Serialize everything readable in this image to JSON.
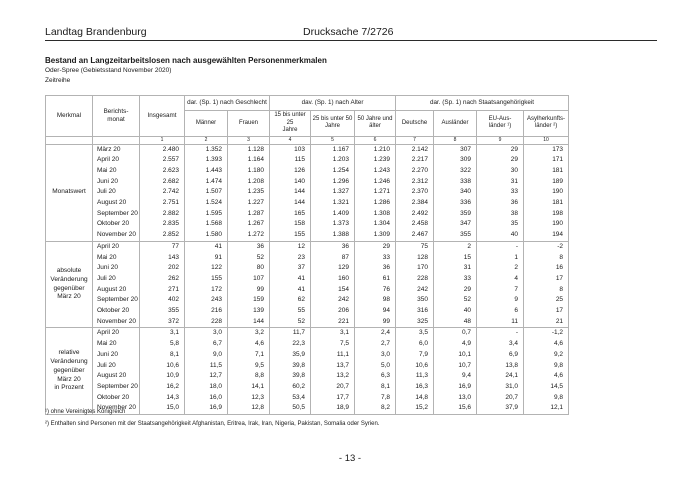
{
  "page": {
    "header_left": "Landtag Brandenburg",
    "header_right": "Drucksache 7/2726",
    "title": "Bestand an Langzeitarbeitslosen nach ausgewählten Personenmerkmalen",
    "subtitle": "Oder-Spree (Gebietsstand November 2020)",
    "subtitle2": "Zeitreihe",
    "footnote1": "¹) ohne Vereinigtes Königreich",
    "footnote2": "²) Enthalten sind Personen mit der Staatsangehörigkeit Afghanistan, Eritrea, Irak, Iran, Nigeria, Pakistan, Somalia oder Syrien.",
    "page_number": "- 13 -"
  },
  "table": {
    "col_headers": {
      "merkmal": "Merkmal",
      "berichtsmonat": "Berichts-\nmonat",
      "insgesamt": "Insgesamt",
      "group_geschlecht": "dar. (Sp. 1) nach Geschlecht",
      "group_alter": "dav. (Sp. 1) nach Alter",
      "group_staat": "dar. (Sp. 1) nach Staatsangehörigkeit",
      "maenner": "Männer",
      "frauen": "Frauen",
      "alter_15_25": "15 bis unter 25\nJahre",
      "alter_25_50": "25 bis unter 50\nJahre",
      "alter_50": "50 Jahre und\nälter",
      "deutsche": "Deutsche",
      "auslaender": "Ausländer",
      "eu_auslaender": "EU-Aus-\nländer ¹)",
      "asyl": "Asylherkunfts-\nländer ²)",
      "col_numbers": [
        "1",
        "2",
        "3",
        "4",
        "5",
        "6",
        "7",
        "8",
        "9",
        "10"
      ]
    },
    "sections": [
      {
        "label": "Monatswert",
        "rows": [
          {
            "monat": "März 20",
            "values": [
              "2.480",
              "1.352",
              "1.128",
              "103",
              "1.167",
              "1.210",
              "2.142",
              "307",
              "29",
              "173"
            ]
          },
          {
            "monat": "April 20",
            "values": [
              "2.557",
              "1.393",
              "1.164",
              "115",
              "1.203",
              "1.239",
              "2.217",
              "309",
              "29",
              "171"
            ]
          },
          {
            "monat": "Mai 20",
            "values": [
              "2.623",
              "1.443",
              "1.180",
              "126",
              "1.254",
              "1.243",
              "2.270",
              "322",
              "30",
              "181"
            ]
          },
          {
            "monat": "Juni 20",
            "values": [
              "2.682",
              "1.474",
              "1.208",
              "140",
              "1.296",
              "1.246",
              "2.312",
              "338",
              "31",
              "189"
            ]
          },
          {
            "monat": "Juli 20",
            "values": [
              "2.742",
              "1.507",
              "1.235",
              "144",
              "1.327",
              "1.271",
              "2.370",
              "340",
              "33",
              "190"
            ]
          },
          {
            "monat": "August 20",
            "values": [
              "2.751",
              "1.524",
              "1.227",
              "144",
              "1.321",
              "1.286",
              "2.384",
              "336",
              "36",
              "181"
            ]
          },
          {
            "monat": "September 20",
            "values": [
              "2.882",
              "1.595",
              "1.287",
              "165",
              "1.409",
              "1.308",
              "2.492",
              "359",
              "38",
              "198"
            ]
          },
          {
            "monat": "Oktober 20",
            "values": [
              "2.835",
              "1.568",
              "1.267",
              "158",
              "1.373",
              "1.304",
              "2.458",
              "347",
              "35",
              "190"
            ]
          },
          {
            "monat": "November 20",
            "values": [
              "2.852",
              "1.580",
              "1.272",
              "155",
              "1.388",
              "1.309",
              "2.467",
              "355",
              "40",
              "194"
            ]
          }
        ]
      },
      {
        "label": "absolute\nVeränderung\ngegenüber\nMärz 20",
        "rows": [
          {
            "monat": "April 20",
            "values": [
              "77",
              "41",
              "36",
              "12",
              "36",
              "29",
              "75",
              "2",
              "-",
              "-2"
            ]
          },
          {
            "monat": "Mai 20",
            "values": [
              "143",
              "91",
              "52",
              "23",
              "87",
              "33",
              "128",
              "15",
              "1",
              "8"
            ]
          },
          {
            "monat": "Juni 20",
            "values": [
              "202",
              "122",
              "80",
              "37",
              "129",
              "36",
              "170",
              "31",
              "2",
              "16"
            ]
          },
          {
            "monat": "Juli 20",
            "values": [
              "262",
              "155",
              "107",
              "41",
              "160",
              "61",
              "228",
              "33",
              "4",
              "17"
            ]
          },
          {
            "monat": "August 20",
            "values": [
              "271",
              "172",
              "99",
              "41",
              "154",
              "76",
              "242",
              "29",
              "7",
              "8"
            ]
          },
          {
            "monat": "September 20",
            "values": [
              "402",
              "243",
              "159",
              "62",
              "242",
              "98",
              "350",
              "52",
              "9",
              "25"
            ]
          },
          {
            "monat": "Oktober 20",
            "values": [
              "355",
              "216",
              "139",
              "55",
              "206",
              "94",
              "316",
              "40",
              "6",
              "17"
            ]
          },
          {
            "monat": "November 20",
            "values": [
              "372",
              "228",
              "144",
              "52",
              "221",
              "99",
              "325",
              "48",
              "11",
              "21"
            ]
          }
        ]
      },
      {
        "label": "relative\nVeränderung\ngegenüber\nMärz 20\nin Prozent",
        "rows": [
          {
            "monat": "April 20",
            "values": [
              "3,1",
              "3,0",
              "3,2",
              "11,7",
              "3,1",
              "2,4",
              "3,5",
              "0,7",
              "-",
              "-1,2"
            ]
          },
          {
            "monat": "Mai 20",
            "values": [
              "5,8",
              "6,7",
              "4,6",
              "22,3",
              "7,5",
              "2,7",
              "6,0",
              "4,9",
              "3,4",
              "4,6"
            ]
          },
          {
            "monat": "Juni 20",
            "values": [
              "8,1",
              "9,0",
              "7,1",
              "35,9",
              "11,1",
              "3,0",
              "7,9",
              "10,1",
              "6,9",
              "9,2"
            ]
          },
          {
            "monat": "Juli 20",
            "values": [
              "10,6",
              "11,5",
              "9,5",
              "39,8",
              "13,7",
              "5,0",
              "10,6",
              "10,7",
              "13,8",
              "9,8"
            ]
          },
          {
            "monat": "August 20",
            "values": [
              "10,9",
              "12,7",
              "8,8",
              "39,8",
              "13,2",
              "6,3",
              "11,3",
              "9,4",
              "24,1",
              "4,6"
            ]
          },
          {
            "monat": "September 20",
            "values": [
              "16,2",
              "18,0",
              "14,1",
              "60,2",
              "20,7",
              "8,1",
              "16,3",
              "16,9",
              "31,0",
              "14,5"
            ]
          },
          {
            "monat": "Oktober 20",
            "values": [
              "14,3",
              "16,0",
              "12,3",
              "53,4",
              "17,7",
              "7,8",
              "14,8",
              "13,0",
              "20,7",
              "9,8"
            ]
          },
          {
            "monat": "November 20",
            "values": [
              "15,0",
              "16,9",
              "12,8",
              "50,5",
              "18,9",
              "8,2",
              "15,2",
              "15,6",
              "37,9",
              "12,1"
            ]
          }
        ]
      }
    ]
  }
}
